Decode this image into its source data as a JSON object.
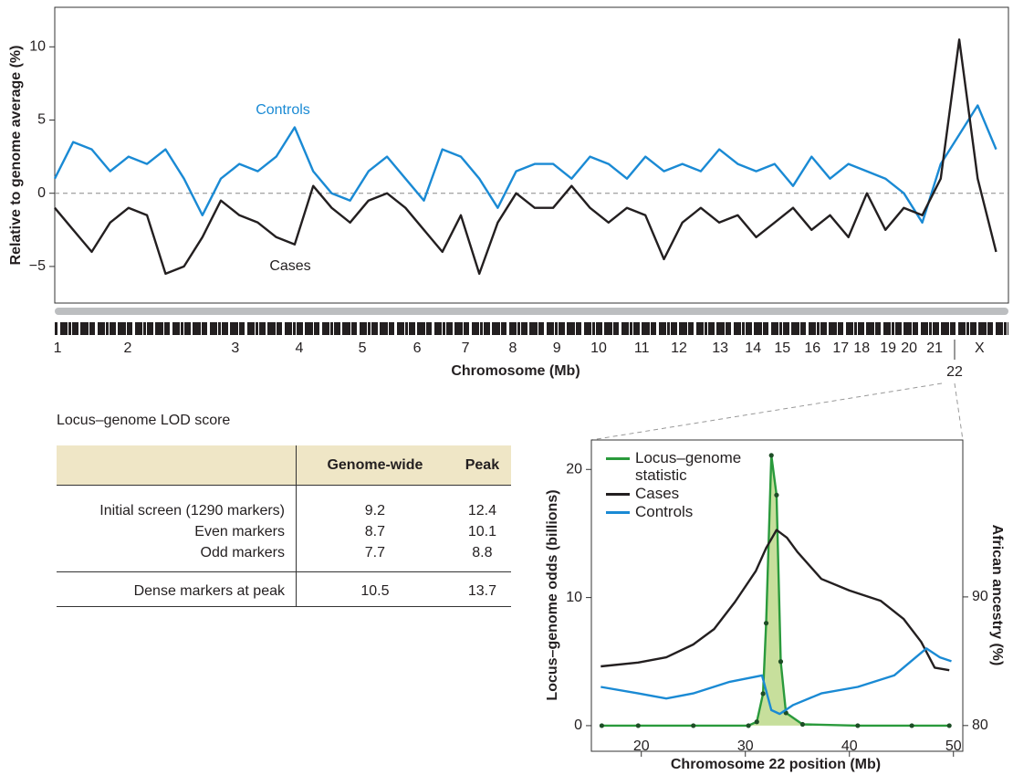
{
  "chart_data": [
    {
      "type": "line",
      "y_label": "Relative to genome average (%)",
      "x_label": "Chromosome (Mb)",
      "xlim": [
        0,
        3100
      ],
      "ylim": [
        -7.5,
        12.7
      ],
      "yticks": [
        {
          "value": -5,
          "label": "−5"
        },
        0,
        5,
        10
      ],
      "reference_line": 0,
      "xticks": [
        {
          "value": 9,
          "label": "1"
        },
        {
          "value": 237,
          "label": "2"
        },
        {
          "value": 587,
          "label": "3"
        },
        {
          "value": 795,
          "label": "4"
        },
        {
          "value": 1000,
          "label": "5"
        },
        {
          "value": 1178,
          "label": "6"
        },
        {
          "value": 1335,
          "label": "7"
        },
        {
          "value": 1489,
          "label": "8"
        },
        {
          "value": 1632,
          "label": "9"
        },
        {
          "value": 1768,
          "label": "10"
        },
        {
          "value": 1908,
          "label": "11"
        },
        {
          "value": 2029,
          "label": "12"
        },
        {
          "value": 2163,
          "label": "13"
        },
        {
          "value": 2270,
          "label": "14"
        },
        {
          "value": 2365,
          "label": "15"
        },
        {
          "value": 2463,
          "label": "16"
        },
        {
          "value": 2555,
          "label": "17"
        },
        {
          "value": 2623,
          "label": "18"
        },
        {
          "value": 2709,
          "label": "19"
        },
        {
          "value": 2777,
          "label": "20"
        },
        {
          "value": 2860,
          "label": "21"
        },
        {
          "value": 3006,
          "label": "X"
        }
      ],
      "zoom_tick": {
        "value": 2925,
        "label": "22"
      },
      "x": [
        0,
        60,
        120,
        180,
        240,
        300,
        360,
        420,
        480,
        540,
        600,
        660,
        720,
        780,
        840,
        900,
        960,
        1020,
        1080,
        1140,
        1200,
        1260,
        1320,
        1380,
        1440,
        1500,
        1560,
        1620,
        1680,
        1740,
        1800,
        1860,
        1920,
        1980,
        2040,
        2100,
        2160,
        2220,
        2280,
        2340,
        2400,
        2460,
        2520,
        2580,
        2640,
        2700,
        2760,
        2820,
        2880,
        2940,
        3000,
        3060
      ],
      "series": [
        {
          "name": "Controls",
          "color": "#1a8ad4",
          "values": [
            1,
            3.5,
            3,
            1.5,
            2.5,
            2,
            3,
            1,
            -1.5,
            1,
            2,
            1.5,
            2.5,
            4.5,
            1.5,
            0,
            -0.5,
            1.5,
            2.5,
            1,
            -0.5,
            3,
            2.5,
            1,
            -1,
            1.5,
            2,
            2,
            1,
            2.5,
            2,
            1,
            2.5,
            1.5,
            2,
            1.5,
            3,
            2,
            1.5,
            2,
            0.5,
            2.5,
            1,
            2,
            1.5,
            1,
            0,
            -2,
            2,
            4,
            6,
            3
          ]
        },
        {
          "name": "Cases",
          "color": "#231f20",
          "values": [
            -1,
            -2.5,
            -4,
            -2,
            -1,
            -1.5,
            -5.5,
            -5,
            -3,
            -0.5,
            -1.5,
            -2,
            -3,
            -3.5,
            0.5,
            -1,
            -2,
            -0.5,
            0,
            -1,
            -2.5,
            -4,
            -1.5,
            -5.5,
            -2,
            0,
            -1,
            -1,
            0.5,
            -1,
            -2,
            -1,
            -1.5,
            -4.5,
            -2,
            -1,
            -2,
            -1.5,
            -3,
            -2,
            -1,
            -2.5,
            -1.5,
            -3,
            0,
            -2.5,
            -1,
            -1.5,
            1,
            10.5,
            1,
            -4
          ]
        }
      ]
    },
    {
      "type": "line",
      "y_label": "Locus–genome odds (billions)",
      "y2_label": "African ancestry (%)",
      "x_label": "Chromosome 22 position (Mb)",
      "xlim": [
        15.2,
        50.9
      ],
      "ylim": [
        -2,
        22.3
      ],
      "y2lim": [
        78,
        102.2
      ],
      "xticks": [
        20,
        30,
        40,
        50
      ],
      "yticks": [
        0,
        10,
        20
      ],
      "y2ticks": [
        80,
        90
      ],
      "series": [
        {
          "name": "Locus–genome statistic",
          "color": "#2a9a3c",
          "fill": "#c7df9c",
          "x": [
            16.2,
            19.7,
            25,
            30.3,
            31.1,
            31.7,
            32.0,
            32.5,
            33.0,
            33.4,
            33.9,
            35.5,
            40.8,
            46,
            49.6
          ],
          "values": [
            0,
            0,
            0,
            0,
            0.3,
            2.5,
            8,
            21.1,
            18,
            5,
            1,
            0.1,
            0,
            0,
            0
          ]
        },
        {
          "name": "Cases",
          "color": "#231f20",
          "axis": "y2",
          "x": [
            16.1,
            19.7,
            22.4,
            25,
            27,
            29,
            31,
            32,
            33,
            34,
            35,
            37.3,
            40,
            43,
            45.2,
            46.9,
            48.2,
            49.6
          ],
          "values": [
            84.6,
            84.9,
            85.3,
            86.3,
            87.5,
            89.6,
            92,
            93.8,
            95.2,
            94.6,
            93.5,
            91.4,
            90.5,
            89.7,
            88.3,
            86.5,
            84.5,
            84.3
          ]
        },
        {
          "name": "Controls",
          "color": "#1a8ad4",
          "axis": "y2",
          "x": [
            16.1,
            19.7,
            22.4,
            25,
            28.5,
            31.6,
            32.5,
            33.3,
            34.6,
            37.3,
            40.8,
            44.3,
            47.4,
            48.7,
            49.8
          ],
          "values": [
            83.0,
            82.5,
            82.1,
            82.5,
            83.4,
            83.9,
            81.2,
            80.9,
            81.6,
            82.5,
            83.0,
            83.9,
            86.0,
            85.3,
            85.0
          ]
        }
      ]
    }
  ],
  "table": {
    "caption": "Locus–genome LOD score",
    "header": [
      "Genome-wide",
      "Peak"
    ],
    "rows": [
      [
        "Initial screen (1290 markers)",
        9.2,
        12.4
      ],
      [
        "Even markers",
        8.7,
        10.1
      ],
      [
        "Odd markers",
        7.7,
        8.8
      ],
      [
        "Dense markers at peak",
        10.5,
        13.7
      ]
    ]
  }
}
